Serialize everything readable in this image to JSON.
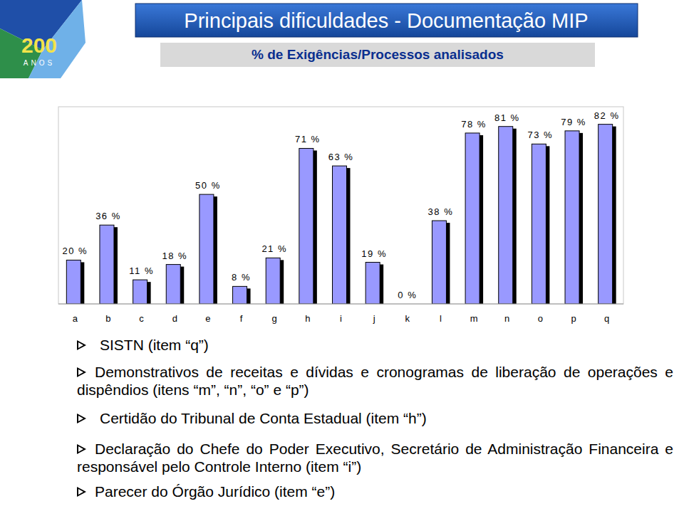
{
  "logo": {
    "number": "200",
    "label": "ANOS"
  },
  "chart_data": {
    "type": "bar",
    "title": "Principais dificuldades - Documentação MIP",
    "subtitle": "% de Exigências/Processos analisados",
    "categories": [
      "a",
      "b",
      "c",
      "d",
      "e",
      "f",
      "g",
      "h",
      "i",
      "j",
      "k",
      "l",
      "m",
      "n",
      "o",
      "p",
      "q"
    ],
    "values": [
      20,
      36,
      11,
      18,
      50,
      8,
      21,
      71,
      63,
      19,
      0,
      38,
      78,
      81,
      73,
      79,
      82
    ],
    "value_labels": [
      "20 %",
      "36 %",
      "11 %",
      "18 %",
      "50 %",
      "8 %",
      "21 %",
      "71 %",
      "63 %",
      "19 %",
      "0 %",
      "38 %",
      "78 %",
      "81 %",
      "73 %",
      "79 %",
      "82 %"
    ],
    "color": "#9999ff",
    "ylim": [
      0,
      90
    ],
    "grid": false,
    "data_labels": true,
    "tick_labels": "x",
    "annotations": [
      "SISTN (item “q”)",
      "Demonstrativos de receitas e dívidas e cronogramas de liberação de operações e dispêndios (itens “m”, “n”, “o” e “p”)",
      "Certidão do Tribunal de Conta Estadual (item “h”)",
      "Declaração do Chefe do Poder Executivo, Secretário de Administração Financeira e responsável pelo Controle Interno (item “i”)",
      "Parecer do Órgão Jurídico (item “e”)"
    ]
  }
}
